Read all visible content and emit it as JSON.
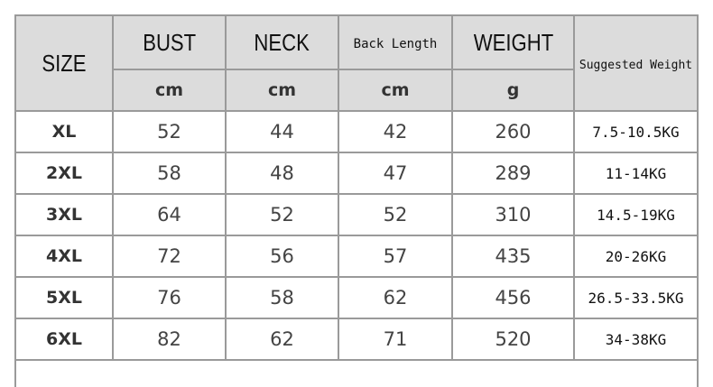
{
  "table": {
    "headers": {
      "size": "SIZE",
      "bust": "BUST",
      "neck": "NECK",
      "back_length": "Back Length",
      "weight": "WEIGHT",
      "suggested_weight": "Suggested Weight"
    },
    "units": {
      "bust": "cm",
      "neck": "cm",
      "back_length": "cm",
      "weight": "g"
    },
    "rows": [
      {
        "size": "XL",
        "bust": "52",
        "neck": "44",
        "back_length": "42",
        "weight": "260",
        "suggested_weight": "7.5-10.5KG"
      },
      {
        "size": "2XL",
        "bust": "58",
        "neck": "48",
        "back_length": "47",
        "weight": "289",
        "suggested_weight": "11-14KG"
      },
      {
        "size": "3XL",
        "bust": "64",
        "neck": "52",
        "back_length": "52",
        "weight": "310",
        "suggested_weight": "14.5-19KG"
      },
      {
        "size": "4XL",
        "bust": "72",
        "neck": "56",
        "back_length": "57",
        "weight": "435",
        "suggested_weight": "20-26KG"
      },
      {
        "size": "5XL",
        "bust": "76",
        "neck": "58",
        "back_length": "62",
        "weight": "456",
        "suggested_weight": "26.5-33.5KG"
      },
      {
        "size": "6XL",
        "bust": "82",
        "neck": "62",
        "back_length": "71",
        "weight": "520",
        "suggested_weight": "34-38KG"
      }
    ]
  },
  "colors": {
    "header_bg": "#dcdcdc",
    "border": "#9a9a9a"
  }
}
